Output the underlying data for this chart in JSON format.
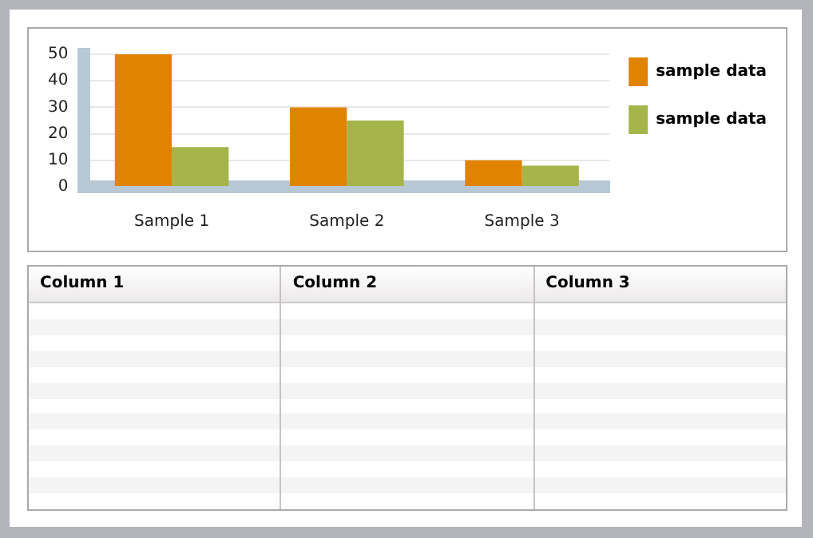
{
  "chart_data": {
    "type": "bar",
    "categories": [
      "Sample 1",
      "Sample 2",
      "Sample 3"
    ],
    "series": [
      {
        "name": "sample data",
        "color": "#e08300",
        "values": [
          50,
          30,
          10
        ]
      },
      {
        "name": "sample data",
        "color": "#a5b54a",
        "values": [
          15,
          25,
          8
        ]
      }
    ],
    "ylim": [
      0,
      50
    ],
    "yticks": [
      0,
      10,
      20,
      30,
      40,
      50
    ],
    "grid": "y",
    "legend": "top right",
    "annotations": [
      "Column 1",
      "Column 2",
      "Column 3"
    ]
  }
}
